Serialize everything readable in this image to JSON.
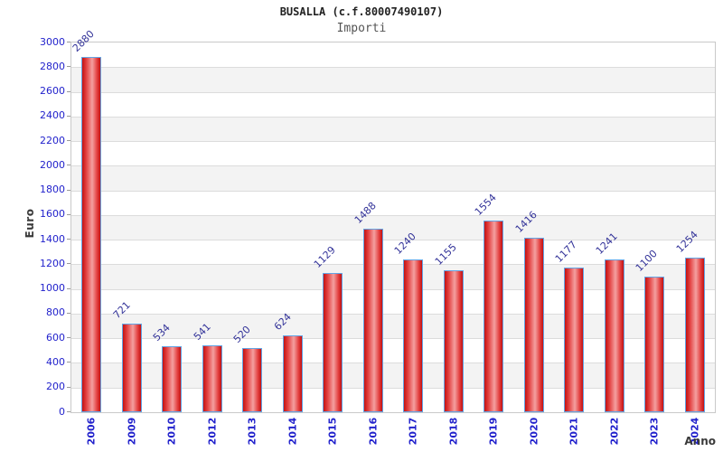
{
  "header": {
    "title": "BUSALLA (c.f.80007490107)",
    "subtitle": "Importi"
  },
  "chart_data": {
    "type": "bar",
    "categories": [
      "2006",
      "2009",
      "2010",
      "2012",
      "2013",
      "2014",
      "2015",
      "2016",
      "2017",
      "2018",
      "2019",
      "2020",
      "2021",
      "2022",
      "2023",
      "2024"
    ],
    "values": [
      2880,
      721,
      534,
      541,
      520,
      624,
      1129,
      1488,
      1240,
      1155,
      1554,
      1416,
      1177,
      1241,
      1100,
      1254
    ],
    "title": "BUSALLA (c.f.80007490107)",
    "subtitle": "Importi",
    "xlabel": "Anno",
    "ylabel": "Euro",
    "ylim": [
      0,
      3000
    ],
    "ytick_step": 200,
    "grid": "alternating horizontal bands",
    "legend": "none",
    "colors": {
      "bar_fill_edge": "#c31212",
      "bar_fill_center": "#f4a0a0",
      "bar_border": "#63a4e4",
      "tick_label": "#2222cc",
      "value_label": "#333399",
      "band_alt": "#f3f3f3",
      "gridline": "#dcdcdc",
      "axis_title": "#3a3a3a",
      "plot_border": "#c9c9c9"
    }
  }
}
